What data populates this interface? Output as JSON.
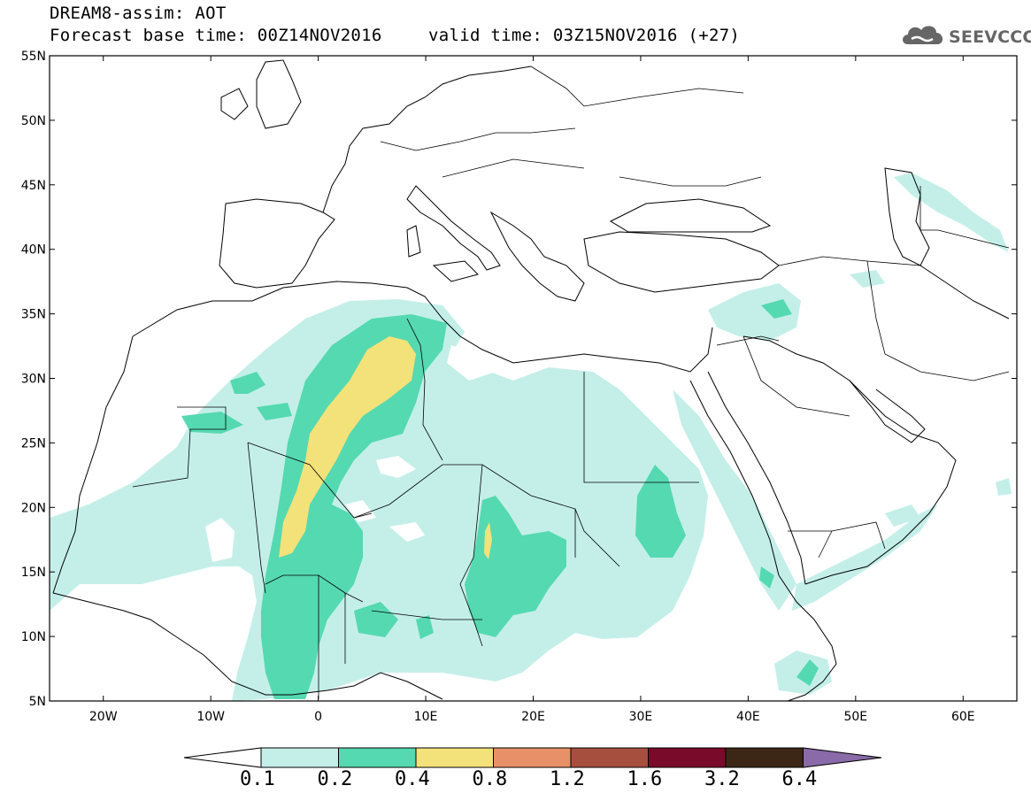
{
  "header": {
    "title_line1": "DREAM8-assim: AOT",
    "title_line2_base": "Forecast base time: 00Z14NOV2016",
    "title_line2_valid": "valid time: 03Z15NOV2016 (+27)"
  },
  "logo": {
    "icon": "cloud-icon",
    "text": "SEEVCCC"
  },
  "map": {
    "lon_range": [
      -25,
      65
    ],
    "lat_range": [
      5,
      55
    ],
    "lat_ticks": [
      "55N",
      "50N",
      "45N",
      "40N",
      "35N",
      "30N",
      "25N",
      "20N",
      "15N",
      "10N",
      "5N"
    ],
    "lon_ticks": [
      "20W",
      "10W",
      "0",
      "10E",
      "20E",
      "30E",
      "40E",
      "50E",
      "60E"
    ]
  },
  "colorbar": {
    "labels": [
      "0.1",
      "0.2",
      "0.4",
      "0.8",
      "1.2",
      "1.6",
      "3.2",
      "6.4"
    ],
    "colors": [
      "#ffffff",
      "#c4efe9",
      "#55d9b0",
      "#f3e27a",
      "#e89068",
      "#a74f3f",
      "#7a0a2a",
      "#3c2716",
      "#8a6aa8"
    ]
  },
  "legend_colors": {
    "aot_0_1": "#c4efe9",
    "aot_0_2": "#55d9b0",
    "aot_0_4": "#f3e27a"
  }
}
